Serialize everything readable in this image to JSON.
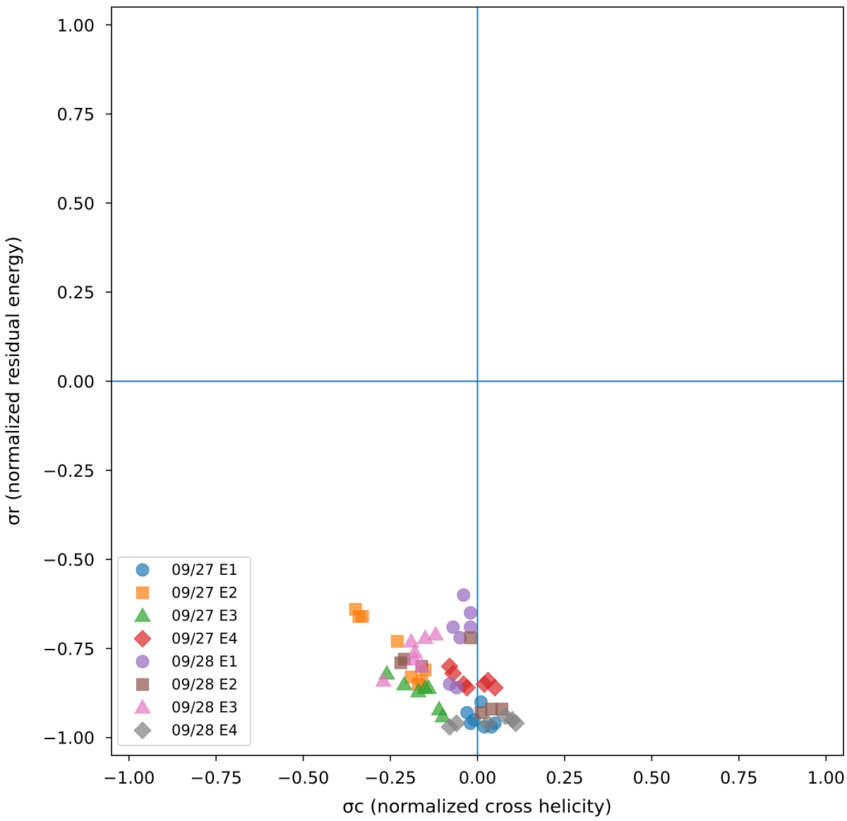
{
  "chart_data": {
    "type": "scatter",
    "xlabel": "σc (normalized cross helicity)",
    "ylabel": "σr (normalized residual energy)",
    "xlim": [
      -1.05,
      1.05
    ],
    "ylim": [
      -1.05,
      1.05
    ],
    "xticks": [
      -1.0,
      -0.75,
      -0.5,
      -0.25,
      0.0,
      0.25,
      0.5,
      0.75,
      1.0
    ],
    "yticks": [
      -1.0,
      -0.75,
      -0.5,
      -0.25,
      0.0,
      0.25,
      0.5,
      0.75,
      1.0
    ],
    "xtick_labels": [
      "−1.00",
      "−0.75",
      "−0.50",
      "−0.25",
      "0.00",
      "0.25",
      "0.50",
      "0.75",
      "1.00"
    ],
    "ytick_labels": [
      "−1.00",
      "−0.75",
      "−0.50",
      "−0.25",
      "0.00",
      "0.25",
      "0.50",
      "0.75",
      "1.00"
    ],
    "reference_lines": {
      "x": 0.0,
      "y": 0.0,
      "color": "#1f77b4"
    },
    "grid": false,
    "legend_position": "lower-left",
    "series": [
      {
        "name": "09/27 E1",
        "marker": "circle",
        "color": "#1f77b4",
        "points": [
          [
            -0.03,
            -0.93
          ],
          [
            0.01,
            -0.9
          ],
          [
            -0.02,
            -0.96
          ],
          [
            0.02,
            -0.97
          ],
          [
            0.04,
            -0.97
          ],
          [
            0.05,
            -0.96
          ],
          [
            -0.01,
            -0.95
          ]
        ]
      },
      {
        "name": "09/27 E2",
        "marker": "square",
        "color": "#ff7f0e",
        "points": [
          [
            -0.35,
            -0.64
          ],
          [
            -0.33,
            -0.66
          ],
          [
            -0.34,
            -0.66
          ],
          [
            -0.23,
            -0.73
          ],
          [
            -0.19,
            -0.83
          ],
          [
            -0.15,
            -0.81
          ],
          [
            -0.16,
            -0.84
          ],
          [
            -0.17,
            -0.85
          ]
        ]
      },
      {
        "name": "09/27 E3",
        "marker": "triangle",
        "color": "#2ca02c",
        "points": [
          [
            -0.26,
            -0.82
          ],
          [
            -0.21,
            -0.85
          ],
          [
            -0.17,
            -0.87
          ],
          [
            -0.15,
            -0.86
          ],
          [
            -0.14,
            -0.86
          ],
          [
            -0.11,
            -0.92
          ],
          [
            -0.1,
            -0.94
          ]
        ]
      },
      {
        "name": "09/27 E4",
        "marker": "diamond",
        "color": "#d62728",
        "points": [
          [
            -0.08,
            -0.8
          ],
          [
            -0.07,
            -0.82
          ],
          [
            -0.04,
            -0.85
          ],
          [
            -0.03,
            -0.86
          ],
          [
            0.03,
            -0.84
          ],
          [
            0.05,
            -0.86
          ],
          [
            0.02,
            -0.85
          ]
        ]
      },
      {
        "name": "09/28 E1",
        "marker": "circle",
        "color": "#9467bd",
        "points": [
          [
            -0.04,
            -0.6
          ],
          [
            -0.02,
            -0.65
          ],
          [
            -0.07,
            -0.69
          ],
          [
            -0.05,
            -0.72
          ],
          [
            -0.02,
            -0.69
          ],
          [
            -0.08,
            -0.85
          ],
          [
            -0.06,
            -0.86
          ]
        ]
      },
      {
        "name": "09/28 E2",
        "marker": "square",
        "color": "#8c564b",
        "points": [
          [
            -0.02,
            -0.72
          ],
          [
            -0.21,
            -0.78
          ],
          [
            -0.22,
            -0.79
          ],
          [
            -0.16,
            -0.8
          ],
          [
            0.04,
            -0.92
          ],
          [
            0.07,
            -0.92
          ],
          [
            0.01,
            -0.93
          ]
        ]
      },
      {
        "name": "09/28 E3",
        "marker": "triangle",
        "color": "#e377c2",
        "points": [
          [
            -0.12,
            -0.71
          ],
          [
            -0.15,
            -0.72
          ],
          [
            -0.19,
            -0.73
          ],
          [
            -0.18,
            -0.76
          ],
          [
            -0.16,
            -0.8
          ],
          [
            -0.27,
            -0.84
          ],
          [
            -0.18,
            -0.78
          ]
        ]
      },
      {
        "name": "09/28 E4",
        "marker": "diamond",
        "color": "#7f7f7f",
        "points": [
          [
            -0.08,
            -0.97
          ],
          [
            -0.06,
            -0.96
          ],
          [
            0.1,
            -0.95
          ],
          [
            0.11,
            -0.96
          ],
          [
            0.08,
            -0.94
          ],
          [
            0.03,
            -0.96
          ]
        ]
      }
    ]
  }
}
